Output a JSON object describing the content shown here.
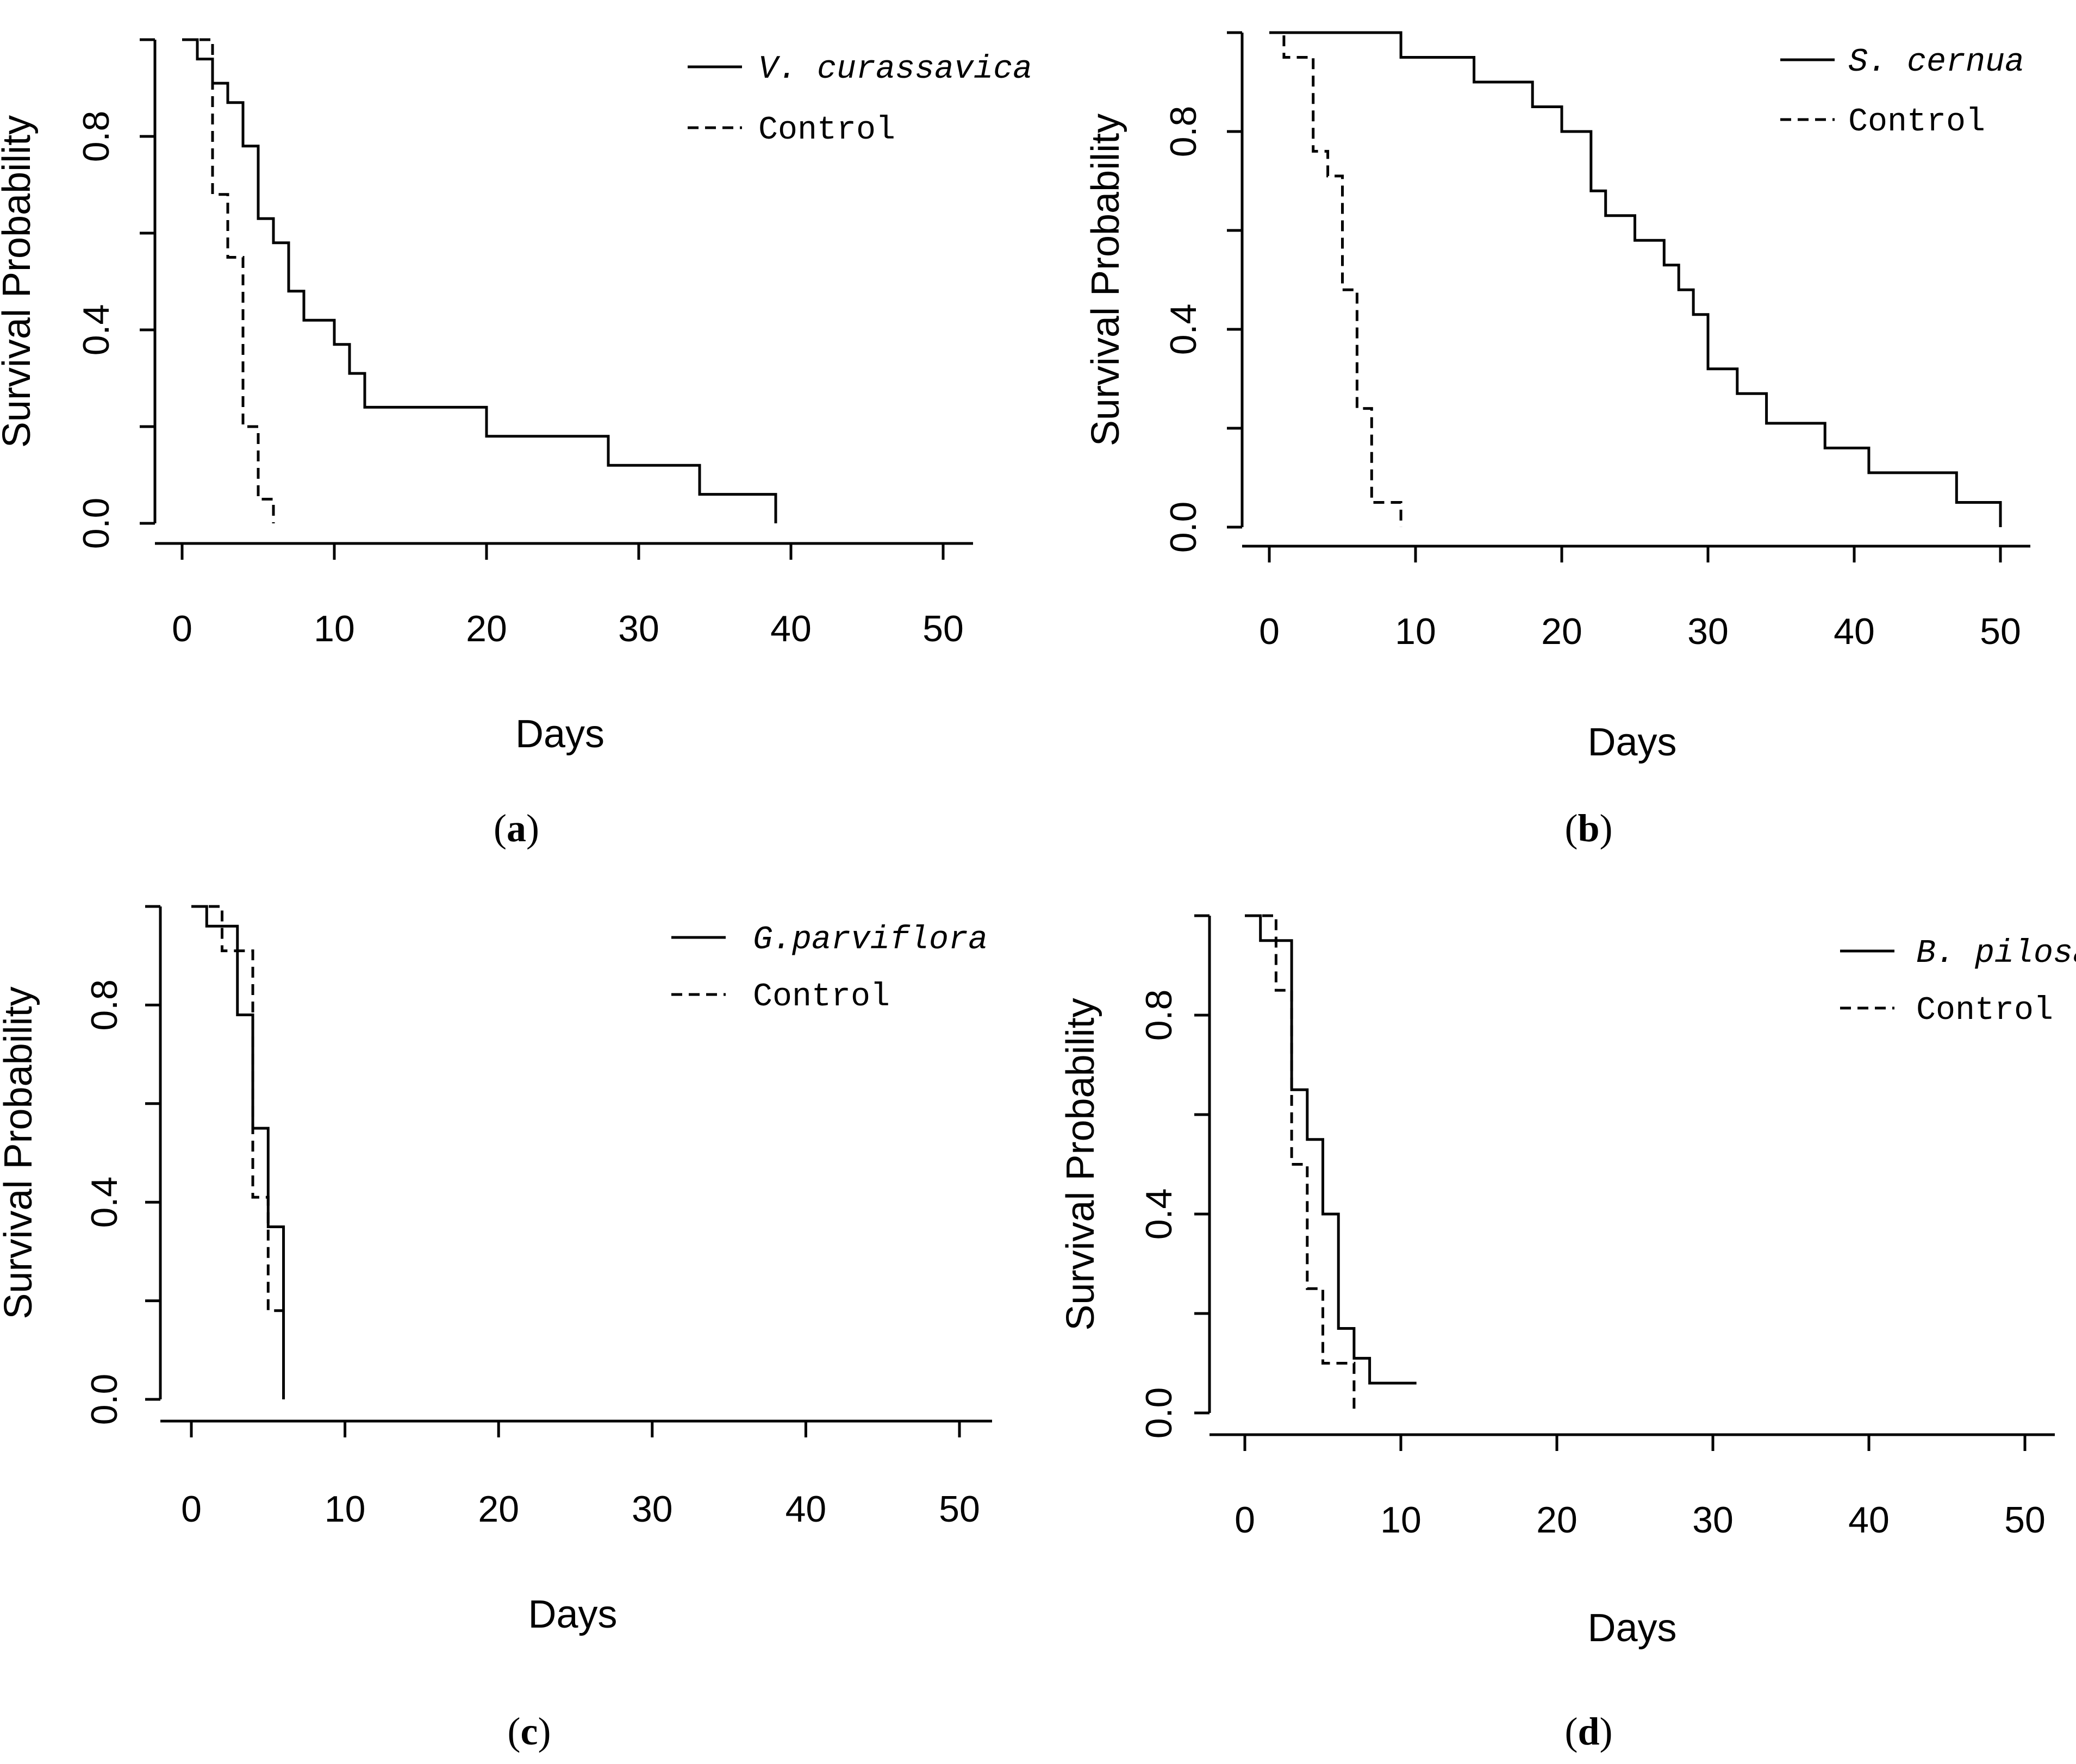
{
  "chart_data": [
    {
      "type": "line",
      "panel": "a",
      "caption_letter": "a",
      "xlabel": "Days",
      "ylabel": "Survival Probability",
      "xlim": [
        0,
        50
      ],
      "ylim": [
        0,
        1
      ],
      "xticks": [
        0,
        10,
        20,
        30,
        40,
        50
      ],
      "yticks": [
        0.0,
        0.4,
        0.8
      ],
      "ytick_labels": [
        "0.0",
        "0.4",
        "0.8"
      ],
      "legend_position": "top-right",
      "series": [
        {
          "name": "V. curassavica",
          "style": "solid",
          "steps": [
            [
              0,
              1.0
            ],
            [
              1,
              0.96
            ],
            [
              2,
              0.91
            ],
            [
              3,
              0.87
            ],
            [
              4,
              0.78
            ],
            [
              5,
              0.63
            ],
            [
              6,
              0.58
            ],
            [
              7,
              0.48
            ],
            [
              8,
              0.42
            ],
            [
              10,
              0.37
            ],
            [
              11,
              0.31
            ],
            [
              12,
              0.24
            ],
            [
              20,
              0.18
            ],
            [
              28,
              0.12
            ],
            [
              34,
              0.06
            ],
            [
              39,
              0.0
            ]
          ]
        },
        {
          "name": "Control",
          "style": "dashed",
          "steps": [
            [
              0,
              1.0
            ],
            [
              2,
              0.68
            ],
            [
              3,
              0.55
            ],
            [
              4,
              0.2
            ],
            [
              5,
              0.05
            ],
            [
              6,
              0.0
            ]
          ]
        }
      ]
    },
    {
      "type": "line",
      "panel": "b",
      "caption_letter": "b",
      "xlabel": "Days",
      "ylabel": "Survival Probability",
      "xlim": [
        0,
        50
      ],
      "ylim": [
        0,
        1
      ],
      "xticks": [
        0,
        10,
        20,
        30,
        40,
        50
      ],
      "yticks": [
        0.0,
        0.4,
        0.8
      ],
      "ytick_labels": [
        "0.0",
        "0.4",
        "0.8"
      ],
      "legend_position": "top-right",
      "series": [
        {
          "name": "S. cernua",
          "style": "solid",
          "steps": [
            [
              0,
              1.0
            ],
            [
              9,
              0.95
            ],
            [
              14,
              0.9
            ],
            [
              18,
              0.85
            ],
            [
              20,
              0.8
            ],
            [
              22,
              0.68
            ],
            [
              23,
              0.63
            ],
            [
              25,
              0.58
            ],
            [
              27,
              0.53
            ],
            [
              28,
              0.48
            ],
            [
              29,
              0.43
            ],
            [
              30,
              0.32
            ],
            [
              32,
              0.27
            ],
            [
              34,
              0.21
            ],
            [
              38,
              0.16
            ],
            [
              41,
              0.11
            ],
            [
              47,
              0.05
            ],
            [
              50,
              0.0
            ]
          ]
        },
        {
          "name": "Control",
          "style": "dashed",
          "steps": [
            [
              0,
              1.0
            ],
            [
              1,
              0.95
            ],
            [
              3,
              0.76
            ],
            [
              4,
              0.71
            ],
            [
              5,
              0.48
            ],
            [
              6,
              0.24
            ],
            [
              7,
              0.05
            ],
            [
              9,
              0.0
            ]
          ]
        }
      ]
    },
    {
      "type": "line",
      "panel": "c",
      "caption_letter": "c",
      "xlabel": "Days",
      "ylabel": "Survival Probability",
      "xlim": [
        0,
        50
      ],
      "ylim": [
        0,
        1
      ],
      "xticks": [
        0,
        10,
        20,
        30,
        40,
        50
      ],
      "yticks": [
        0.0,
        0.4,
        0.8
      ],
      "ytick_labels": [
        "0.0",
        "0.4",
        "0.8"
      ],
      "legend_position": "top-right",
      "series": [
        {
          "name": "G.parviflora",
          "style": "solid",
          "steps": [
            [
              0,
              1.0
            ],
            [
              1,
              0.96
            ],
            [
              2,
              0.96
            ],
            [
              3,
              0.78
            ],
            [
              4,
              0.55
            ],
            [
              5,
              0.35
            ],
            [
              6,
              0.0
            ]
          ]
        },
        {
          "name": "Control",
          "style": "dashed",
          "steps": [
            [
              0,
              1.0
            ],
            [
              1,
              1.0
            ],
            [
              2,
              0.91
            ],
            [
              4,
              0.41
            ],
            [
              5,
              0.18
            ],
            [
              6,
              0.18
            ]
          ]
        }
      ]
    },
    {
      "type": "line",
      "panel": "d",
      "caption_letter": "d",
      "xlabel": "Days",
      "ylabel": "Survival Probability",
      "xlim": [
        0,
        50
      ],
      "ylim": [
        0,
        1
      ],
      "xticks": [
        0,
        10,
        20,
        30,
        40,
        50
      ],
      "yticks": [
        0.0,
        0.4,
        0.8
      ],
      "ytick_labels": [
        "0.0",
        "0.4",
        "0.8"
      ],
      "legend_position": "top-right",
      "series": [
        {
          "name": "B. pilosa",
          "style": "solid",
          "steps": [
            [
              0,
              1.0
            ],
            [
              1,
              0.95
            ],
            [
              3,
              0.65
            ],
            [
              4,
              0.55
            ],
            [
              5,
              0.4
            ],
            [
              6,
              0.17
            ],
            [
              7,
              0.11
            ],
            [
              8,
              0.06
            ],
            [
              11,
              0.06
            ]
          ]
        },
        {
          "name": "Control",
          "style": "dashed",
          "steps": [
            [
              0,
              1.0
            ],
            [
              2,
              0.85
            ],
            [
              3,
              0.5
            ],
            [
              4,
              0.25
            ],
            [
              5,
              0.1
            ],
            [
              7,
              0.0
            ]
          ]
        }
      ]
    }
  ]
}
